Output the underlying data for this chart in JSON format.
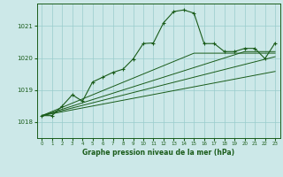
{
  "title": "Graphe pression niveau de la mer (hPa)",
  "bg_color": "#cce8e8",
  "grid_color": "#99cccc",
  "line_color": "#1a5c1a",
  "xlim": [
    -0.5,
    23.5
  ],
  "ylim": [
    1017.5,
    1021.7
  ],
  "yticks": [
    1018,
    1019,
    1020,
    1021
  ],
  "xticks": [
    0,
    1,
    2,
    3,
    4,
    5,
    6,
    7,
    8,
    9,
    10,
    11,
    12,
    13,
    14,
    15,
    16,
    17,
    18,
    19,
    20,
    21,
    22,
    23
  ],
  "series": {
    "main": [
      1018.2,
      1018.2,
      1018.5,
      1018.85,
      1018.65,
      1019.25,
      1019.4,
      1019.55,
      1019.65,
      1019.97,
      1020.45,
      1020.47,
      1021.1,
      1021.45,
      1021.5,
      1021.4,
      1020.45,
      1020.45,
      1020.2,
      1020.2,
      1020.3,
      1020.3,
      1019.98,
      1020.47
    ],
    "trend1": [
      1018.2,
      1018.26,
      1018.32,
      1018.38,
      1018.44,
      1018.5,
      1018.56,
      1018.62,
      1018.68,
      1018.74,
      1018.8,
      1018.86,
      1018.92,
      1018.98,
      1019.04,
      1019.1,
      1019.16,
      1019.22,
      1019.28,
      1019.34,
      1019.4,
      1019.46,
      1019.52,
      1019.58
    ],
    "trend2": [
      1018.2,
      1018.28,
      1018.36,
      1018.44,
      1018.52,
      1018.6,
      1018.68,
      1018.76,
      1018.84,
      1018.92,
      1019.0,
      1019.08,
      1019.16,
      1019.24,
      1019.32,
      1019.4,
      1019.48,
      1019.56,
      1019.64,
      1019.72,
      1019.8,
      1019.88,
      1019.96,
      1020.04
    ],
    "trend3": [
      1018.2,
      1018.3,
      1018.4,
      1018.5,
      1018.6,
      1018.7,
      1018.8,
      1018.9,
      1019.0,
      1019.1,
      1019.2,
      1019.3,
      1019.4,
      1019.5,
      1019.6,
      1019.7,
      1019.8,
      1019.9,
      1020.0,
      1020.1,
      1020.2,
      1020.2,
      1020.2,
      1020.2
    ],
    "trend4": [
      1018.2,
      1018.33,
      1018.46,
      1018.59,
      1018.72,
      1018.85,
      1018.98,
      1019.11,
      1019.24,
      1019.37,
      1019.5,
      1019.63,
      1019.76,
      1019.89,
      1020.02,
      1020.15,
      1020.15,
      1020.15,
      1020.15,
      1020.15,
      1020.15,
      1020.15,
      1020.15,
      1020.15
    ]
  }
}
